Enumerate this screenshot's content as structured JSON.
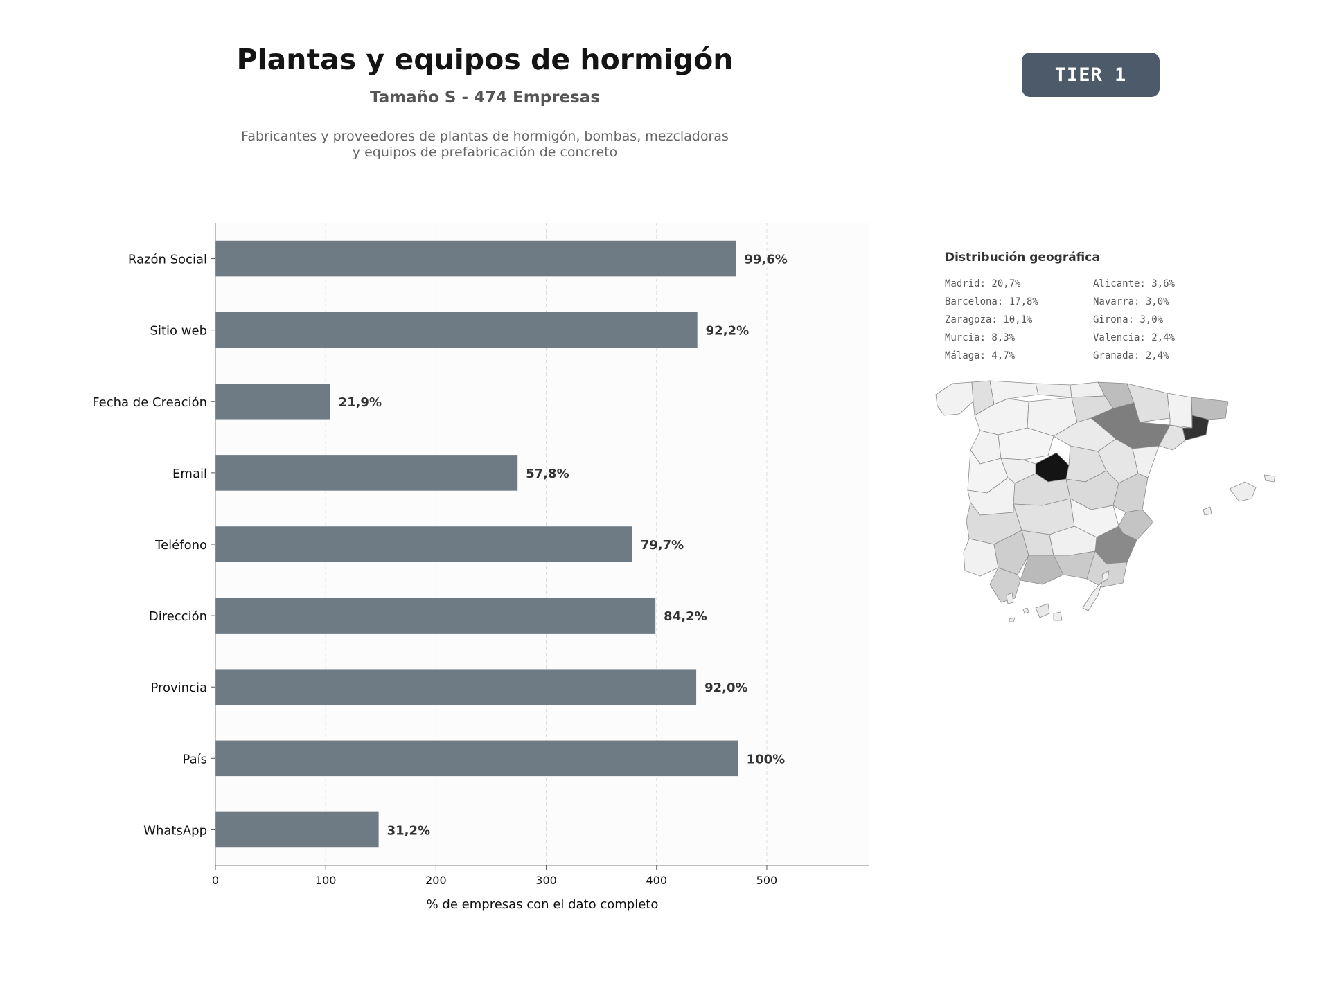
{
  "header": {
    "title": "Plantas y equipos de hormigón",
    "subtitle": "Tamaño S - 474 Empresas",
    "description_line1": "Fabricantes y proveedores de plantas de hormigón, bombas, mezcladoras",
    "description_line2": "y equipos de prefabricación de concreto",
    "badge": "TIER 1"
  },
  "colors": {
    "bar": "#6e7a84",
    "badge": "#4d5a69",
    "label": "#333333"
  },
  "chart_data": {
    "type": "bar",
    "orientation": "horizontal",
    "categories": [
      "Razón Social",
      "Sitio web",
      "Fecha de Creación",
      "Email",
      "Teléfono",
      "Dirección",
      "Provincia",
      "País",
      "WhatsApp"
    ],
    "values": [
      472,
      437,
      104,
      274,
      378,
      399,
      436,
      474,
      148
    ],
    "data_labels": [
      "99,6%",
      "92,2%",
      "21,9%",
      "57,8%",
      "79,7%",
      "84,2%",
      "92,0%",
      "100%",
      "31,2%"
    ],
    "xlabel": "% de empresas con el dato completo",
    "xlim": [
      0,
      593
    ],
    "xticks": [
      0,
      100,
      200,
      300,
      400,
      500
    ],
    "grid": true
  },
  "geo": {
    "title": "Distribución geográfica",
    "items": [
      "Madrid: 20,7%",
      "Alicante: 3,6%",
      "Barcelona: 17,8%",
      "Navarra: 3,0%",
      "Zaragoza: 10,1%",
      "Girona: 3,0%",
      "Murcia: 8,3%",
      "Valencia: 2,4%",
      "Málaga: 4,7%",
      "Granada: 2,4%"
    ]
  }
}
